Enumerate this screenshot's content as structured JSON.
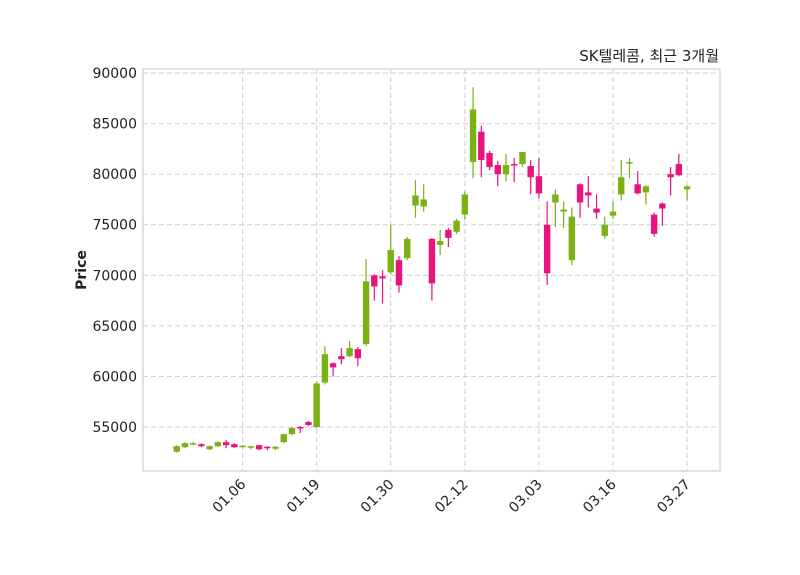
{
  "chart_data": {
    "type": "candlestick",
    "title": "SK텔레콤, 최근 3개월",
    "xlabel": "",
    "ylabel": "Price",
    "ylim": [
      50650,
      90400
    ],
    "xlim": [
      -4.1,
      66
    ],
    "grid": true,
    "yticks": [
      55000,
      60000,
      65000,
      70000,
      75000,
      80000,
      85000,
      90000
    ],
    "xticks": [
      {
        "index": 8,
        "label": "01.06"
      },
      {
        "index": 17,
        "label": "01.19"
      },
      {
        "index": 26,
        "label": "01.30"
      },
      {
        "index": 35,
        "label": "02.12"
      },
      {
        "index": 44,
        "label": "03.03"
      },
      {
        "index": 53,
        "label": "03.16"
      },
      {
        "index": 62,
        "label": "03.27"
      }
    ],
    "up_color": "#7cb115",
    "down_color": "#e8137d",
    "ohlc_fields": [
      "open",
      "high",
      "low",
      "close"
    ],
    "ohlc": [
      [
        52550,
        53200,
        52450,
        53100
      ],
      [
        53000,
        53500,
        52900,
        53400
      ],
      [
        53250,
        53500,
        53200,
        53400
      ],
      [
        53300,
        53400,
        53000,
        53100
      ],
      [
        52800,
        53200,
        52700,
        53100
      ],
      [
        53100,
        53600,
        53000,
        53500
      ],
      [
        53500,
        53700,
        52900,
        53200
      ],
      [
        53300,
        53400,
        52950,
        53000
      ],
      [
        53050,
        53200,
        52950,
        53150
      ],
      [
        52950,
        53150,
        52800,
        53100
      ],
      [
        53200,
        53250,
        52700,
        52800
      ],
      [
        53050,
        53100,
        52700,
        52950
      ],
      [
        52850,
        53100,
        52700,
        53050
      ],
      [
        53500,
        54300,
        53400,
        54300
      ],
      [
        54300,
        55000,
        54200,
        54900
      ],
      [
        55000,
        55100,
        54400,
        54900
      ],
      [
        55500,
        55600,
        55100,
        55200
      ],
      [
        55000,
        59500,
        54900,
        59300
      ],
      [
        59400,
        63000,
        59200,
        62200
      ],
      [
        61300,
        61400,
        60000,
        60900
      ],
      [
        62000,
        62800,
        61200,
        61700
      ],
      [
        62000,
        63500,
        61900,
        62800
      ],
      [
        62700,
        62900,
        61000,
        61800
      ],
      [
        63200,
        71600,
        63000,
        69400
      ],
      [
        70000,
        70100,
        67500,
        68900
      ],
      [
        69900,
        70500,
        67200,
        69700
      ],
      [
        70300,
        75000,
        70100,
        72500
      ],
      [
        71500,
        71900,
        68300,
        69000
      ],
      [
        71700,
        73800,
        71500,
        73600
      ],
      [
        76900,
        79400,
        75700,
        77900
      ],
      [
        76800,
        79000,
        76300,
        77500
      ],
      [
        73600,
        73700,
        67500,
        69200
      ],
      [
        73000,
        74500,
        72000,
        73400
      ],
      [
        74500,
        74700,
        72800,
        73700
      ],
      [
        74300,
        75600,
        74100,
        75400
      ],
      [
        76000,
        78300,
        75500,
        78000
      ],
      [
        81200,
        88600,
        79600,
        86400
      ],
      [
        84200,
        84800,
        79700,
        81400
      ],
      [
        82100,
        82300,
        80400,
        80700
      ],
      [
        80900,
        81300,
        78800,
        80000
      ],
      [
        80000,
        82000,
        79300,
        80900
      ],
      [
        81000,
        81600,
        79200,
        80900
      ],
      [
        81000,
        82200,
        80700,
        82200
      ],
      [
        80800,
        81400,
        78000,
        79700
      ],
      [
        79800,
        81600,
        77600,
        78100
      ],
      [
        75000,
        77300,
        69050,
        70200
      ],
      [
        77200,
        78500,
        74800,
        78000
      ],
      [
        76300,
        77300,
        74700,
        76500
      ],
      [
        71500,
        76700,
        71000,
        75800
      ],
      [
        79000,
        79100,
        75700,
        77200
      ],
      [
        78200,
        79800,
        76700,
        77900
      ],
      [
        76600,
        78000,
        75600,
        76200
      ],
      [
        73900,
        75800,
        73600,
        75000
      ],
      [
        75900,
        77300,
        75600,
        76300
      ],
      [
        78000,
        81400,
        77400,
        79700
      ],
      [
        81100,
        81600,
        79600,
        81200
      ],
      [
        79000,
        80300,
        78000,
        78100
      ],
      [
        78200,
        78900,
        77000,
        78800
      ],
      [
        76000,
        76200,
        73800,
        74100
      ],
      [
        77100,
        77200,
        74900,
        76600
      ],
      [
        80000,
        80700,
        77900,
        79700
      ],
      [
        81000,
        82000,
        79800,
        79900
      ],
      [
        78500,
        78900,
        77400,
        78800
      ]
    ]
  }
}
